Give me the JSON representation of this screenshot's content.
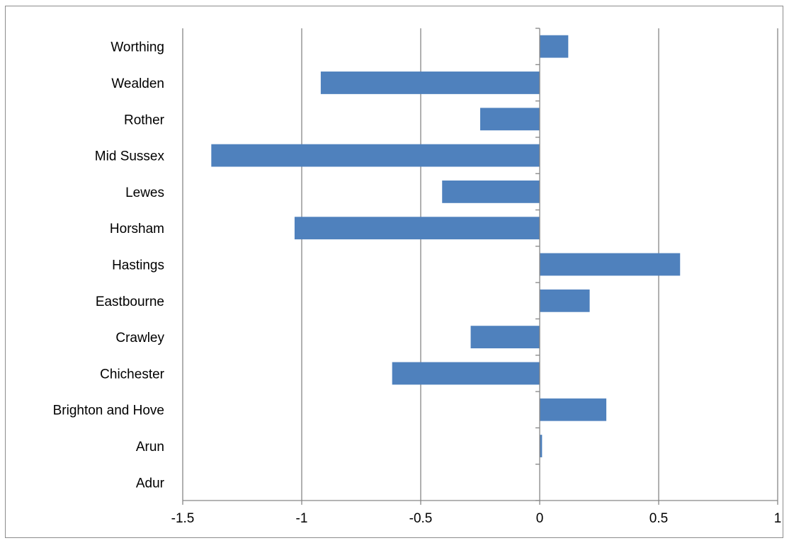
{
  "chart_data": {
    "type": "bar",
    "orientation": "horizontal",
    "categories": [
      "Adur",
      "Arun",
      "Brighton and Hove",
      "Chichester",
      "Crawley",
      "Eastbourne",
      "Hastings",
      "Horsham",
      "Lewes",
      "Mid Sussex",
      "Rother",
      "Wealden",
      "Worthing"
    ],
    "values": [
      0.0,
      0.01,
      0.28,
      -0.62,
      -0.29,
      0.21,
      0.59,
      -1.03,
      -0.41,
      -1.38,
      -0.25,
      -0.92,
      0.12
    ],
    "title": "",
    "xlabel": "",
    "ylabel": "",
    "xlim": [
      -1.5,
      1
    ],
    "xticks": [
      -1.5,
      -1,
      -0.5,
      0,
      0.5,
      1
    ],
    "xtick_labels": [
      "-1.5",
      "-1",
      "-0.5",
      "0",
      "0.5",
      "1"
    ],
    "grid": "vertical",
    "legend": "none",
    "bar_color": "#4f81bd",
    "grid_color": "#868686"
  }
}
